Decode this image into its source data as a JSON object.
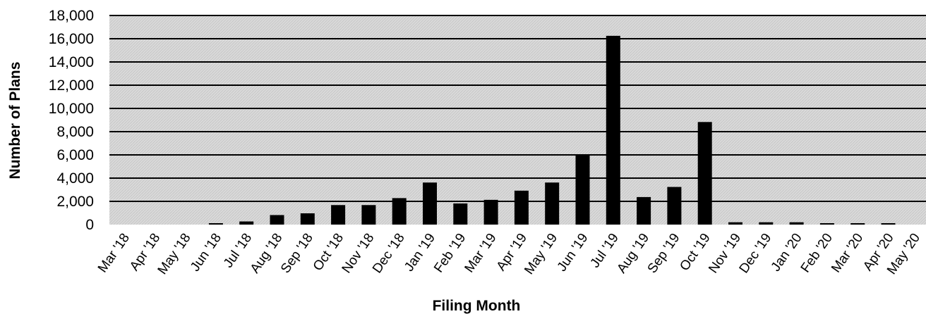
{
  "chart_data": {
    "type": "bar",
    "title": "",
    "xlabel": "Filing Month",
    "ylabel": "Number of Plans",
    "ylim": [
      0,
      18000
    ],
    "yticks": [
      0,
      2000,
      4000,
      6000,
      8000,
      10000,
      12000,
      14000,
      16000,
      18000
    ],
    "ytick_labels": [
      "0",
      "2,000",
      "4,000",
      "6,000",
      "8,000",
      "10,000",
      "12,000",
      "14,000",
      "16,000",
      "18,000"
    ],
    "grid": true,
    "legend": "none",
    "categories": [
      "Mar '18",
      "Apr '18",
      "May '18",
      "Jun '18",
      "Jul '18",
      "Aug '18",
      "Sep '18",
      "Oct '18",
      "Nov '18",
      "Dec '18",
      "Jan '19",
      "Feb '19",
      "Mar '19",
      "Apr '19",
      "May '19",
      "Jun '19",
      "Jul '19",
      "Aug '19",
      "Sep '19",
      "Oct '19",
      "Nov '19",
      "Dec '19",
      "Jan '20",
      "Feb '20",
      "Mar '20",
      "Apr '20",
      "May '20"
    ],
    "values": [
      0,
      0,
      0,
      80,
      270,
      820,
      970,
      1680,
      1680,
      2280,
      3620,
      1820,
      2130,
      2920,
      3620,
      5970,
      16250,
      2370,
      3240,
      8830,
      200,
      200,
      200,
      100,
      100,
      100,
      0
    ],
    "colors": {
      "bar": "#000000",
      "plot_bg": "#d9d9d9",
      "gridline": "#000000"
    }
  }
}
